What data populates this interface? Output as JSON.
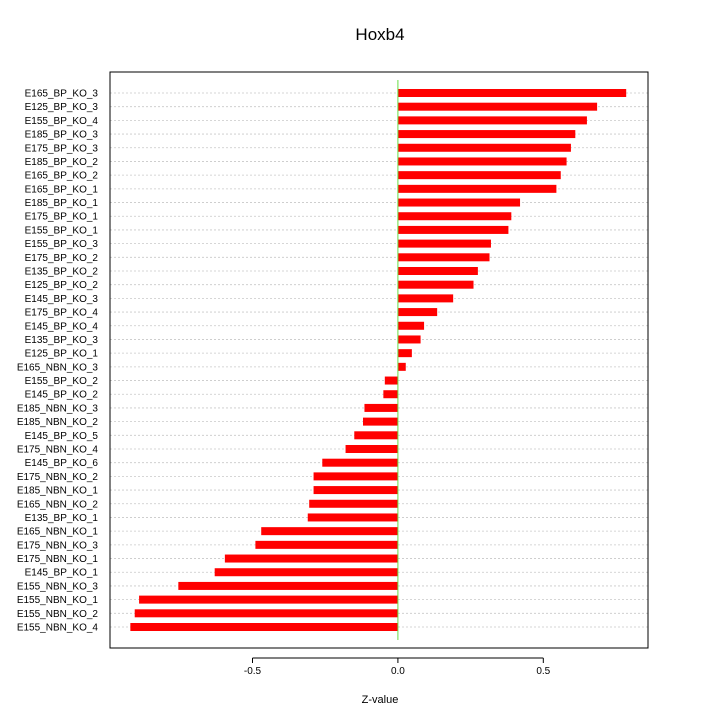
{
  "chart_data": {
    "type": "bar",
    "orientation": "horizontal",
    "title": "Hoxb4",
    "xlabel": "Z-value",
    "ylabel": "",
    "xlim": [
      -0.99,
      0.86
    ],
    "xticks": [
      -0.5,
      0.0,
      0.5
    ],
    "xtick_labels": [
      "-0.5",
      "0.0",
      "0.5"
    ],
    "grid": true,
    "bar_color": "#ff0000",
    "zero_line_color": "#66dd44",
    "categories": [
      "E165_BP_KO_3",
      "E125_BP_KO_3",
      "E155_BP_KO_4",
      "E185_BP_KO_3",
      "E175_BP_KO_3",
      "E185_BP_KO_2",
      "E165_BP_KO_2",
      "E165_BP_KO_1",
      "E185_BP_KO_1",
      "E175_BP_KO_1",
      "E155_BP_KO_1",
      "E155_BP_KO_3",
      "E175_BP_KO_2",
      "E135_BP_KO_2",
      "E125_BP_KO_2",
      "E145_BP_KO_3",
      "E175_BP_KO_4",
      "E145_BP_KO_4",
      "E135_BP_KO_3",
      "E125_BP_KO_1",
      "E165_NBN_KO_3",
      "E155_BP_KO_2",
      "E145_BP_KO_2",
      "E185_NBN_KO_3",
      "E185_NBN_KO_2",
      "E145_BP_KO_5",
      "E175_NBN_KO_4",
      "E145_BP_KO_6",
      "E175_NBN_KO_2",
      "E185_NBN_KO_1",
      "E165_NBN_KO_2",
      "E135_BP_KO_1",
      "E165_NBN_KO_1",
      "E175_NBN_KO_3",
      "E175_NBN_KO_1",
      "E145_BP_KO_1",
      "E155_NBN_KO_3",
      "E155_NBN_KO_1",
      "E155_NBN_KO_2",
      "E155_NBN_KO_4"
    ],
    "values": [
      0.785,
      0.685,
      0.65,
      0.61,
      0.595,
      0.58,
      0.56,
      0.545,
      0.42,
      0.39,
      0.38,
      0.32,
      0.315,
      0.275,
      0.26,
      0.19,
      0.135,
      0.09,
      0.078,
      0.048,
      0.027,
      -0.045,
      -0.05,
      -0.115,
      -0.12,
      -0.15,
      -0.18,
      -0.26,
      -0.29,
      -0.29,
      -0.305,
      -0.31,
      -0.47,
      -0.49,
      -0.595,
      -0.63,
      -0.755,
      -0.89,
      -0.905,
      -0.92
    ]
  }
}
